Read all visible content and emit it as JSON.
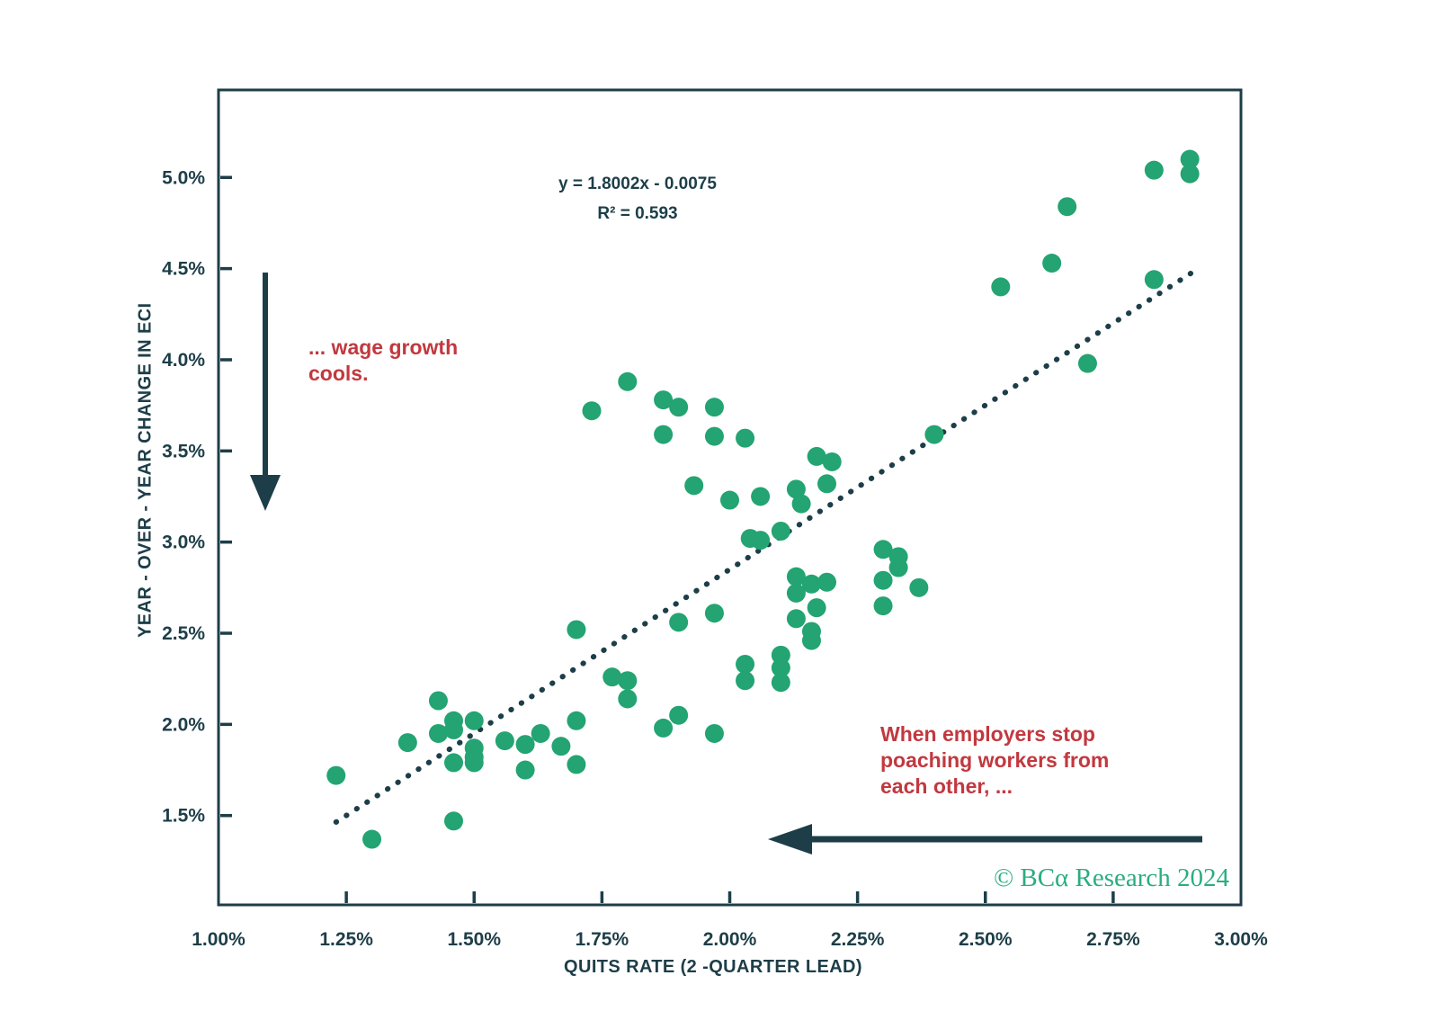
{
  "chart_data": {
    "type": "scatter",
    "xlabel": "QUITS RATE (2 -QUARTER LEAD)",
    "ylabel": "YEAR - OVER - YEAR CHANGE IN ECI",
    "xlim": [
      1.0,
      3.0
    ],
    "ylim": [
      1.01,
      5.48
    ],
    "grid": false,
    "x_tick_labels": [
      "1.00%",
      "1.25%",
      "1.50%",
      "1.75%",
      "2.00%",
      "2.25%",
      "2.50%",
      "2.75%",
      "3.00%"
    ],
    "x_tick_values": [
      1.0,
      1.25,
      1.5,
      1.75,
      2.0,
      2.25,
      2.5,
      2.75,
      3.0
    ],
    "y_tick_labels": [
      "5.0%",
      "4.5%",
      "4.0%",
      "3.5%",
      "3.0%",
      "2.5%",
      "2.0%",
      "1.5%"
    ],
    "y_tick_values": [
      5.0,
      4.5,
      4.0,
      3.5,
      3.0,
      2.5,
      2.0,
      1.5
    ],
    "point_color": "#23a472",
    "points": [
      [
        1.8,
        3.88
      ],
      [
        1.73,
        3.72
      ],
      [
        1.87,
        3.78
      ],
      [
        1.9,
        3.74
      ],
      [
        1.97,
        3.74
      ],
      [
        1.87,
        3.59
      ],
      [
        1.97,
        3.58
      ],
      [
        2.03,
        3.57
      ],
      [
        1.93,
        3.31
      ],
      [
        2.0,
        3.23
      ],
      [
        2.06,
        3.25
      ],
      [
        2.17,
        3.47
      ],
      [
        2.2,
        3.44
      ],
      [
        2.19,
        3.32
      ],
      [
        2.13,
        3.29
      ],
      [
        2.14,
        3.21
      ],
      [
        2.04,
        3.02
      ],
      [
        2.06,
        3.01
      ],
      [
        2.1,
        3.06
      ],
      [
        2.13,
        2.81
      ],
      [
        2.16,
        2.77
      ],
      [
        2.19,
        2.78
      ],
      [
        2.13,
        2.72
      ],
      [
        2.17,
        2.64
      ],
      [
        2.13,
        2.58
      ],
      [
        2.16,
        2.51
      ],
      [
        2.16,
        2.46
      ],
      [
        2.4,
        3.59
      ],
      [
        2.3,
        2.96
      ],
      [
        2.33,
        2.92
      ],
      [
        2.33,
        2.86
      ],
      [
        2.3,
        2.79
      ],
      [
        2.3,
        2.65
      ],
      [
        2.37,
        2.75
      ],
      [
        2.83,
        5.04
      ],
      [
        2.9,
        5.1
      ],
      [
        2.9,
        5.02
      ],
      [
        2.66,
        4.84
      ],
      [
        2.63,
        4.53
      ],
      [
        2.53,
        4.4
      ],
      [
        2.83,
        4.44
      ],
      [
        2.7,
        3.98
      ],
      [
        1.43,
        2.13
      ],
      [
        1.46,
        2.02
      ],
      [
        1.46,
        1.97
      ],
      [
        1.5,
        2.02
      ],
      [
        1.43,
        1.95
      ],
      [
        1.37,
        1.9
      ],
      [
        1.5,
        1.87
      ],
      [
        1.5,
        1.82
      ],
      [
        1.46,
        1.79
      ],
      [
        1.5,
        1.79
      ],
      [
        1.23,
        1.72
      ],
      [
        1.56,
        1.91
      ],
      [
        1.6,
        1.89
      ],
      [
        1.63,
        1.95
      ],
      [
        1.67,
        1.88
      ],
      [
        1.7,
        2.02
      ],
      [
        1.6,
        1.75
      ],
      [
        1.7,
        1.78
      ],
      [
        1.46,
        1.47
      ],
      [
        1.3,
        1.37
      ],
      [
        1.7,
        2.52
      ],
      [
        1.77,
        2.26
      ],
      [
        1.8,
        2.24
      ],
      [
        1.8,
        2.14
      ],
      [
        1.9,
        2.56
      ],
      [
        1.97,
        2.61
      ],
      [
        1.87,
        1.98
      ],
      [
        1.9,
        2.05
      ],
      [
        1.97,
        1.95
      ],
      [
        2.03,
        2.33
      ],
      [
        2.03,
        2.24
      ],
      [
        2.1,
        2.38
      ],
      [
        2.1,
        2.31
      ],
      [
        2.1,
        2.23
      ]
    ],
    "trendline": {
      "style": "dotted",
      "slope": 1.8002,
      "intercept": -0.0075,
      "x_start": 1.23,
      "x_end": 2.91,
      "equation_label": "y = 1.8002x - 0.0075",
      "r2": 0.593,
      "r2_label": "R² = 0.593"
    },
    "annotations": [
      {
        "id": "wage",
        "text": "... wage growth\ncools.",
        "arrow": "down"
      },
      {
        "id": "poach",
        "text": "When employers stop\npoaching workers from\neach other, ...",
        "arrow": "left"
      }
    ]
  },
  "branding": {
    "copyright": "© BCα Research 2024"
  },
  "colors": {
    "axis": "#1d3e48",
    "point": "#23a472",
    "trendline": "#1d3e48",
    "annotation_red": "#c2383f",
    "brand_green": "#2aad7f",
    "background": "#ffffff"
  }
}
